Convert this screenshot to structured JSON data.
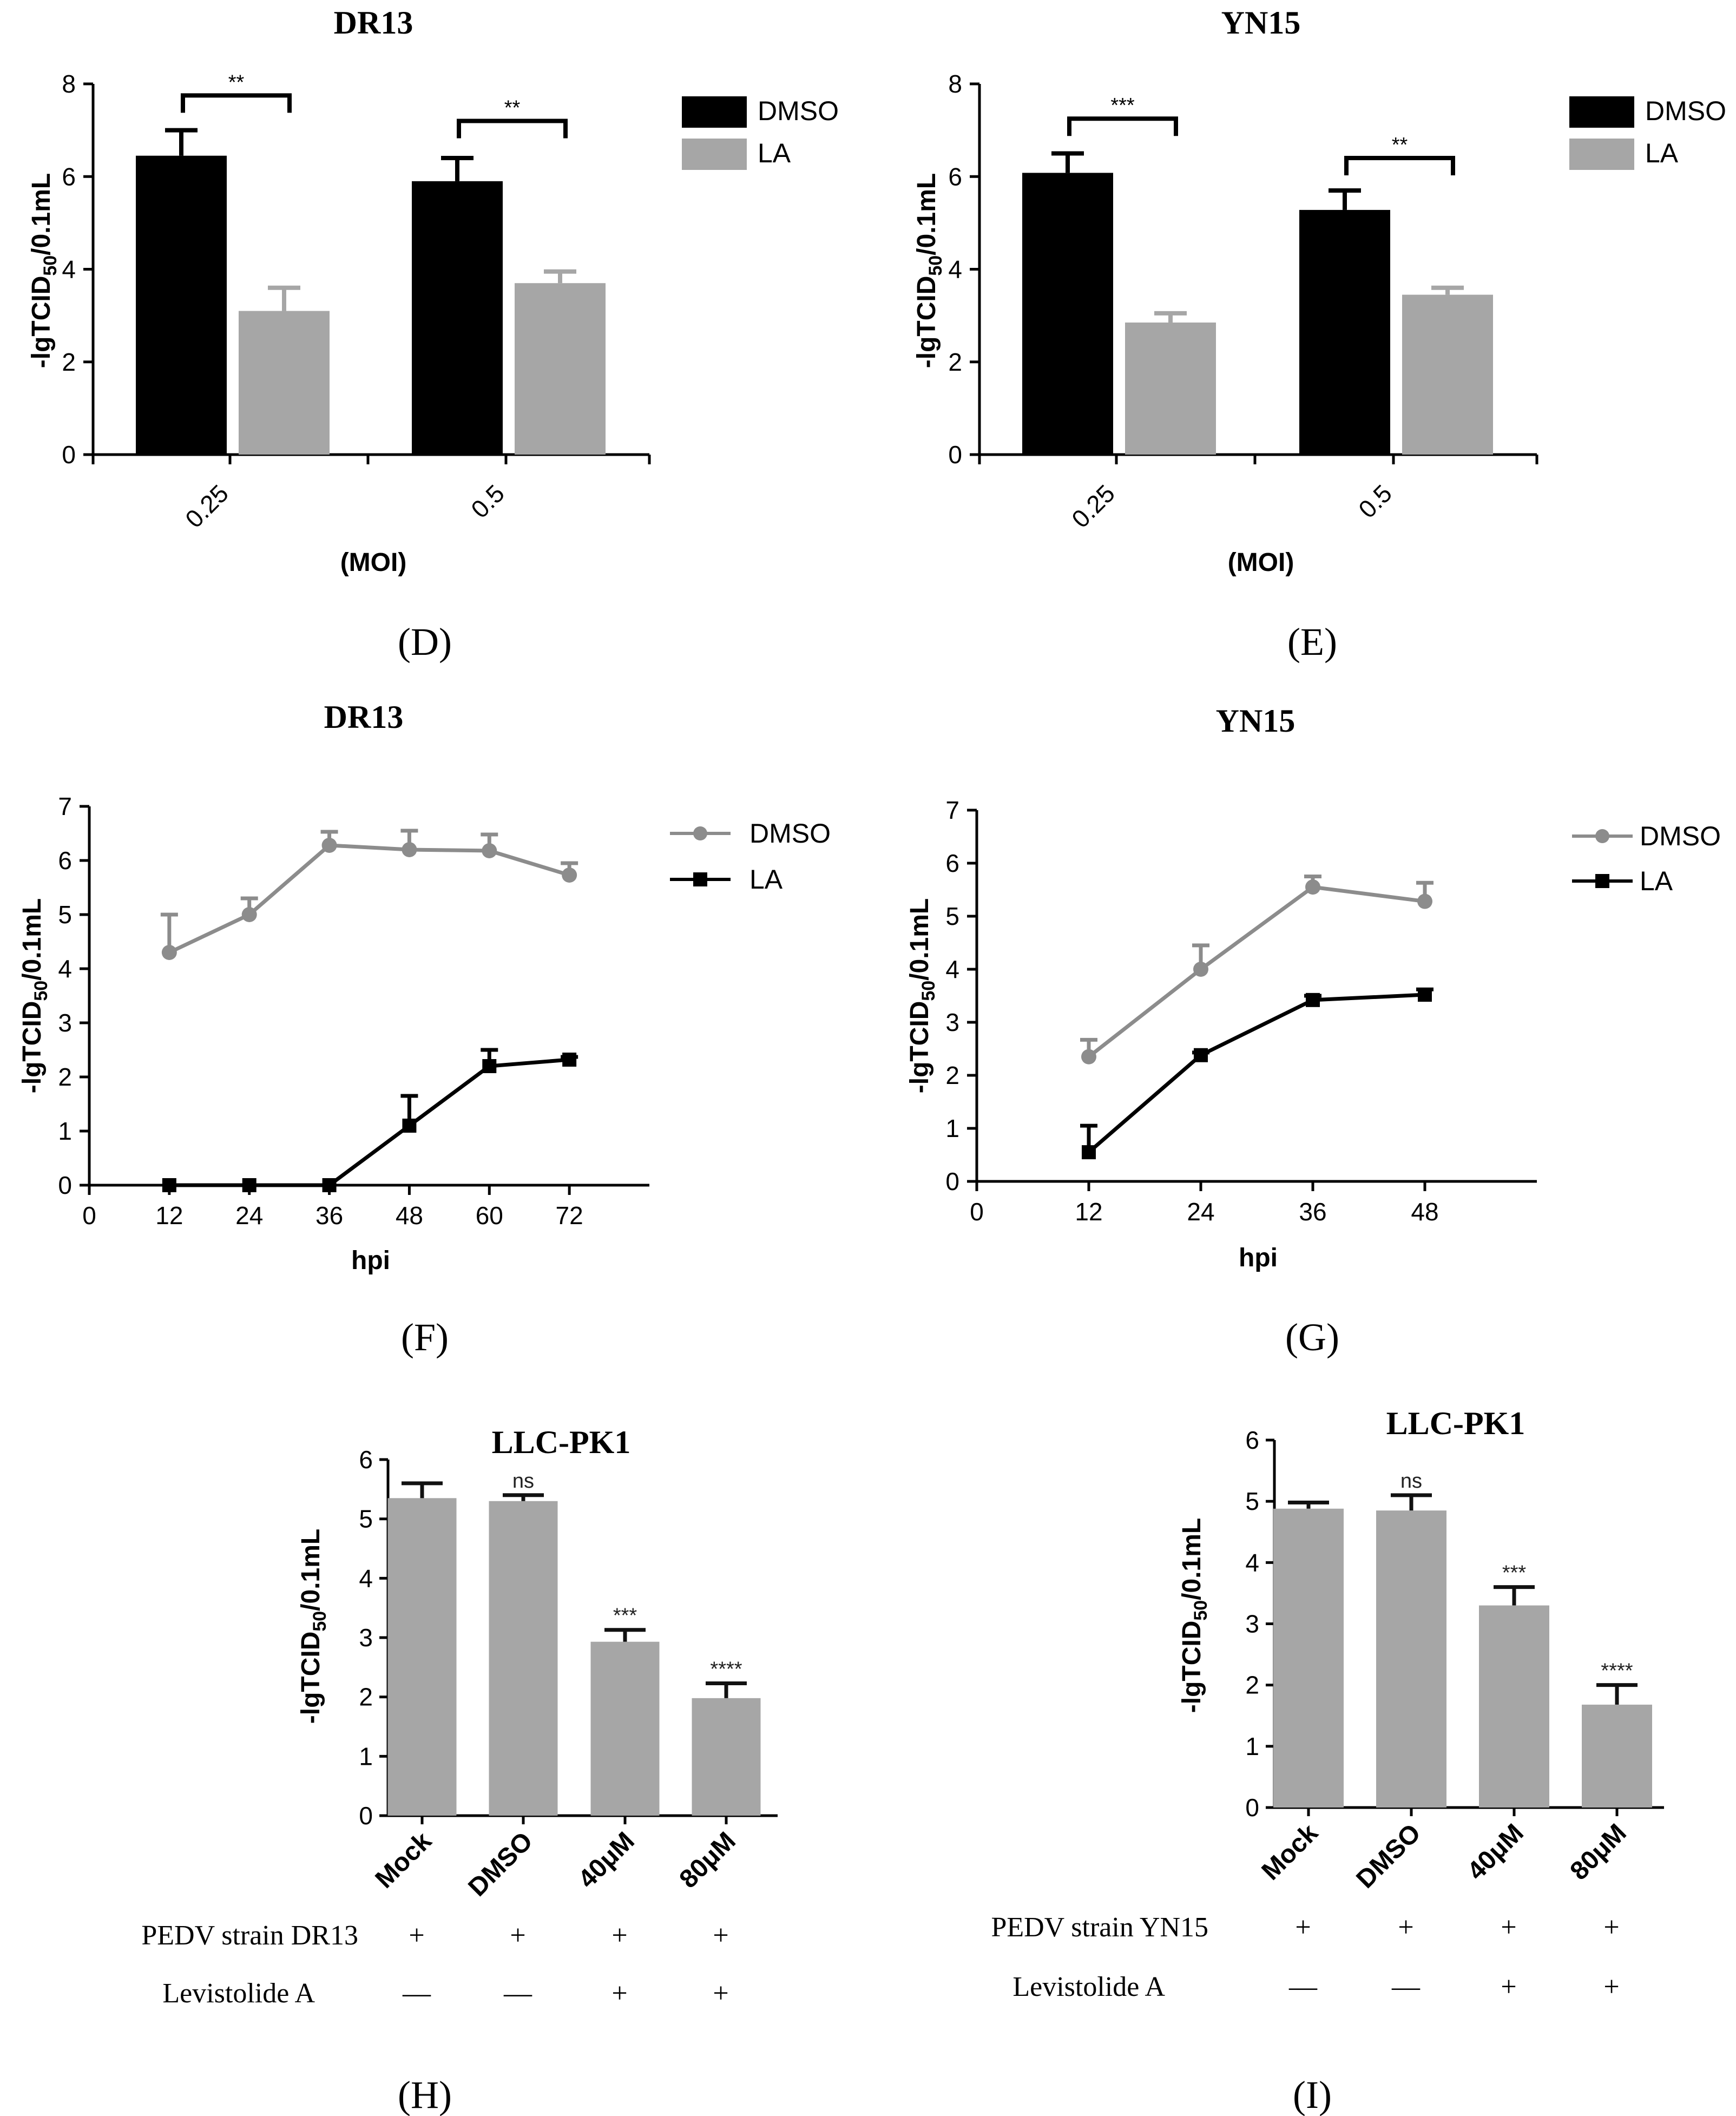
{
  "colors": {
    "black": "#000000",
    "grey": "#a6a6a6",
    "line_grey": "#8c8c8c"
  },
  "chart_data": [
    {
      "id": "D",
      "type": "bar",
      "title": "DR13",
      "panel_label": "(D)",
      "ylabel_pre": "-lgTCID",
      "ylabel_sub": "50",
      "ylabel_post": "/0.1mL",
      "xlabel": "(MOI)",
      "ylim": [
        0,
        8
      ],
      "yticks": [
        "0",
        "2",
        "4",
        "6",
        "8"
      ],
      "categories": [
        "0.25",
        "0.5"
      ],
      "series": [
        {
          "name": "DMSO",
          "color": "#000000",
          "values": [
            6.45,
            5.9
          ],
          "errors": [
            0.55,
            0.5
          ]
        },
        {
          "name": "LA",
          "color": "#a6a6a6",
          "values": [
            3.1,
            3.7
          ],
          "errors": [
            0.5,
            0.25
          ]
        }
      ],
      "significance": [
        "**",
        "**"
      ],
      "sig_levels": [
        7.75,
        7.2
      ]
    },
    {
      "id": "E",
      "type": "bar",
      "title": "YN15",
      "panel_label": "(E)",
      "ylabel_pre": "-lgTCID",
      "ylabel_sub": "50",
      "ylabel_post": "/0.1mL",
      "xlabel": "(MOI)",
      "ylim": [
        0,
        8
      ],
      "yticks": [
        "0",
        "2",
        "4",
        "6",
        "8"
      ],
      "categories": [
        "0.25",
        "0.5"
      ],
      "series": [
        {
          "name": "DMSO",
          "color": "#000000",
          "values": [
            6.08,
            5.28
          ],
          "errors": [
            0.42,
            0.42
          ]
        },
        {
          "name": "LA",
          "color": "#a6a6a6",
          "values": [
            2.85,
            3.45
          ],
          "errors": [
            0.2,
            0.15
          ]
        }
      ],
      "significance": [
        "***",
        "**"
      ],
      "sig_levels": [
        7.25,
        6.4
      ]
    },
    {
      "id": "F",
      "type": "line",
      "title": "DR13",
      "panel_label": "(F)",
      "ylabel_pre": "-lgTCID",
      "ylabel_sub": "50",
      "ylabel_post": "/0.1mL",
      "xlabel": "hpi",
      "xlim": [
        0,
        84
      ],
      "ylim": [
        0,
        7
      ],
      "xticks": [
        "0",
        "12",
        "24",
        "36",
        "48",
        "60",
        "72"
      ],
      "yticks": [
        "0",
        "1",
        "2",
        "3",
        "4",
        "5",
        "6",
        "7"
      ],
      "series": [
        {
          "name": "DMSO",
          "color": "#8c8c8c",
          "marker": "circle",
          "x": [
            12,
            24,
            36,
            48,
            60,
            72
          ],
          "y": [
            4.3,
            5.0,
            6.28,
            6.2,
            6.18,
            5.73
          ],
          "errors": [
            0.7,
            0.3,
            0.25,
            0.35,
            0.3,
            0.22
          ]
        },
        {
          "name": "LA",
          "color": "#000000",
          "marker": "square",
          "x": [
            12,
            24,
            36,
            48,
            60,
            72
          ],
          "y": [
            0,
            0,
            0,
            1.1,
            2.2,
            2.32
          ],
          "errors": [
            0,
            0,
            0,
            0.55,
            0.3,
            0.05
          ]
        }
      ]
    },
    {
      "id": "G",
      "type": "line",
      "title": "YN15",
      "panel_label": "(G)",
      "ylabel_pre": "-lgTCID",
      "ylabel_sub": "50",
      "ylabel_post": "/0.1mL",
      "xlabel": "hpi",
      "xlim": [
        0,
        60
      ],
      "ylim": [
        0,
        7
      ],
      "xticks": [
        "0",
        "12",
        "24",
        "36",
        "48"
      ],
      "yticks": [
        "0",
        "1",
        "2",
        "3",
        "4",
        "5",
        "6",
        "7"
      ],
      "series": [
        {
          "name": "DMSO",
          "color": "#8c8c8c",
          "marker": "circle",
          "x": [
            12,
            24,
            36,
            48
          ],
          "y": [
            2.35,
            4.0,
            5.55,
            5.28
          ],
          "errors": [
            0.32,
            0.45,
            0.2,
            0.35
          ]
        },
        {
          "name": "LA",
          "color": "#000000",
          "marker": "square",
          "x": [
            12,
            24,
            36,
            48
          ],
          "y": [
            0.55,
            2.38,
            3.42,
            3.52
          ],
          "errors": [
            0.5,
            0.05,
            0.08,
            0.1
          ]
        }
      ]
    },
    {
      "id": "H",
      "type": "bar",
      "title": "LLC-PK1",
      "panel_label": "(H)",
      "ylabel_pre": "-lgTCID",
      "ylabel_sub": "50",
      "ylabel_post": "/0.1mL",
      "ylim": [
        0,
        6
      ],
      "yticks": [
        "0",
        "1",
        "2",
        "3",
        "4",
        "5",
        "6"
      ],
      "categories": [
        "Mock",
        "DMSO",
        "40μM",
        "80μM"
      ],
      "values": [
        5.35,
        5.3,
        2.93,
        1.98
      ],
      "errors": [
        0.25,
        0.1,
        0.2,
        0.25
      ],
      "significance": [
        "",
        "ns",
        "***",
        "****"
      ],
      "color": "#a6a6a6",
      "table": {
        "row1_label": "PEDV strain DR13",
        "row1": [
          "+",
          "+",
          "+",
          "+"
        ],
        "row2_label": "Levistolide  A",
        "row2": [
          "—",
          "—",
          "+",
          "+"
        ]
      }
    },
    {
      "id": "I",
      "type": "bar",
      "title": "LLC-PK1",
      "panel_label": "(I)",
      "ylabel_pre": "-lgTCID",
      "ylabel_sub": "50",
      "ylabel_post": "/0.1mL",
      "ylim": [
        0,
        6
      ],
      "yticks": [
        "0",
        "1",
        "2",
        "3",
        "4",
        "5",
        "6"
      ],
      "categories": [
        "Mock",
        "DMSO",
        "40μM",
        "80μM"
      ],
      "values": [
        4.88,
        4.85,
        3.3,
        1.68
      ],
      "errors": [
        0.1,
        0.25,
        0.3,
        0.32
      ],
      "significance": [
        "",
        "ns",
        "***",
        "****"
      ],
      "color": "#a6a6a6",
      "table": {
        "row1_label": "PEDV strain YN15",
        "row1": [
          "+",
          "+",
          "+",
          "+"
        ],
        "row2_label": "Levistolide  A",
        "row2": [
          "—",
          "—",
          "+",
          "+"
        ]
      }
    }
  ]
}
